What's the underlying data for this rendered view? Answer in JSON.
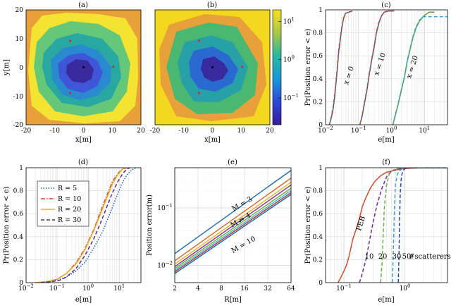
{
  "figure": {
    "panel_titles": [
      "(a)",
      "(b)",
      "(c)",
      "(d)",
      "(e)",
      "(f)"
    ]
  },
  "chart_data": [
    {
      "panel": "(a)",
      "type": "heatmap",
      "title": "(a)",
      "xlabel": "x[m]",
      "ylabel": "y[m]",
      "xlim": [
        -20,
        20
      ],
      "ylim": [
        -20,
        20
      ],
      "xticks": [
        "-20",
        "-10",
        "0",
        "10",
        "20"
      ],
      "yticks": [
        "20",
        "10",
        "0",
        "-10",
        "-20"
      ],
      "levels_colors": [
        "#e8a03a",
        "#f4e330",
        "#64c878",
        "#28a8a0",
        "#2a8ad0",
        "#3f56d8",
        "#3a2aa0"
      ],
      "anchors": [
        [
          -5,
          7
        ],
        [
          10,
          0
        ],
        [
          -5,
          -7
        ]
      ],
      "target": [
        0,
        0
      ]
    },
    {
      "panel": "(b)",
      "type": "heatmap",
      "title": "(b)",
      "xlabel": "x[m]",
      "xlim": [
        -20,
        20
      ],
      "ylim": [
        -20,
        20
      ],
      "xticks": [
        "-20",
        "-10",
        "0",
        "10",
        "20"
      ],
      "colorbar": {
        "ticks": [
          "10",
          "10",
          "10"
        ],
        "exponents": [
          "1",
          "0",
          "−1"
        ],
        "tick_values": [
          10,
          1,
          0.1
        ],
        "range": [
          0.02,
          20
        ]
      },
      "anchors": [
        [
          -5,
          7
        ],
        [
          10,
          0
        ],
        [
          -5,
          -7
        ]
      ],
      "target": [
        0,
        0
      ]
    },
    {
      "panel": "(c)",
      "type": "line",
      "title": "(c)",
      "xlabel": "e[m]",
      "ylabel": "Pr(Position error < e)",
      "xscale": "log",
      "xlim": [
        0.01,
        50
      ],
      "ylim": [
        0,
        1
      ],
      "xticks": [
        0.01,
        0.1,
        1,
        10
      ],
      "yticks": [
        "0",
        "0.2",
        "0.4",
        "0.6",
        "0.8",
        "1"
      ],
      "annotations": [
        "x = 0",
        "x = 10",
        "x = 20"
      ],
      "series": [
        {
          "x": [
            0.013,
            0.015,
            0.017,
            0.019,
            0.021,
            0.023,
            0.025,
            0.028,
            0.031,
            0.035,
            0.04,
            0.05,
            0.065
          ],
          "y": [
            0,
            0.06,
            0.14,
            0.25,
            0.38,
            0.5,
            0.63,
            0.74,
            0.84,
            0.92,
            0.97,
            0.98,
            0.99
          ],
          "color": "#1f5fb4",
          "dash": ""
        },
        {
          "x": [
            0.013,
            0.015,
            0.017,
            0.019,
            0.021,
            0.023,
            0.025,
            0.028,
            0.031,
            0.035,
            0.04,
            0.05,
            0.065
          ],
          "y": [
            0,
            0.07,
            0.16,
            0.27,
            0.4,
            0.52,
            0.65,
            0.76,
            0.85,
            0.93,
            0.97,
            0.98,
            0.99
          ],
          "color": "#d84a2a",
          "dash": "5,3"
        },
        {
          "x": [
            0.11,
            0.13,
            0.15,
            0.18,
            0.21,
            0.25,
            0.3,
            0.35,
            0.42,
            0.5,
            0.6,
            0.8,
            1.2
          ],
          "y": [
            0,
            0.08,
            0.18,
            0.3,
            0.43,
            0.56,
            0.68,
            0.8,
            0.89,
            0.95,
            0.98,
            0.99,
            0.99
          ],
          "color": "#1f5fb4",
          "dash": ""
        },
        {
          "x": [
            0.11,
            0.13,
            0.15,
            0.18,
            0.21,
            0.25,
            0.3,
            0.35,
            0.42,
            0.5,
            0.6,
            0.8,
            1.2
          ],
          "y": [
            0,
            0.09,
            0.19,
            0.31,
            0.44,
            0.57,
            0.69,
            0.81,
            0.9,
            0.95,
            0.98,
            0.99,
            0.99
          ],
          "color": "#d84a2a",
          "dash": "5,3"
        },
        {
          "x": [
            1.1,
            1.3,
            1.6,
            2,
            2.5,
            3,
            3.7,
            4.5,
            5.5,
            7,
            9,
            11,
            14,
            20
          ],
          "y": [
            0,
            0.08,
            0.18,
            0.3,
            0.42,
            0.55,
            0.66,
            0.76,
            0.84,
            0.9,
            0.94,
            0.96,
            0.98,
            0.98
          ],
          "color": "#5aa02c",
          "dash": ""
        },
        {
          "x": [
            1.1,
            1.3,
            1.6,
            2,
            2.5,
            3,
            3.7,
            4.5,
            5.5,
            7,
            9,
            10.5,
            12,
            50
          ],
          "y": [
            0,
            0.09,
            0.19,
            0.31,
            0.43,
            0.56,
            0.67,
            0.77,
            0.85,
            0.91,
            0.94,
            0.94,
            0.94,
            0.94
          ],
          "color": "#3aa8d8",
          "dash": "5,3"
        }
      ]
    },
    {
      "panel": "(d)",
      "type": "line",
      "title": "(d)",
      "xlabel": "e[m]",
      "ylabel": "Pr(Position error < e)",
      "xscale": "log",
      "xlim": [
        0.01,
        50
      ],
      "ylim": [
        0,
        1
      ],
      "xticks": [
        0.01,
        0.1,
        1,
        10
      ],
      "yticks": [
        "0",
        "0.2",
        "0.4",
        "0.6",
        "0.8",
        "1"
      ],
      "legend_position": "top-left",
      "series": [
        {
          "name": "R = 5",
          "color": "#1f5fb4",
          "dash": "1.5,2",
          "x": [
            0.02,
            0.05,
            0.1,
            0.2,
            0.4,
            0.8,
            1.5,
            3,
            5,
            8,
            12,
            18,
            25,
            35
          ],
          "y": [
            0,
            0.005,
            0.02,
            0.05,
            0.1,
            0.18,
            0.3,
            0.45,
            0.6,
            0.74,
            0.86,
            0.94,
            0.98,
            1
          ]
        },
        {
          "name": "R = 10",
          "color": "#d84a2a",
          "dash": "6,2,1.5,2",
          "x": [
            0.02,
            0.05,
            0.1,
            0.2,
            0.4,
            0.8,
            1.5,
            2.5,
            4,
            6,
            9,
            13,
            18
          ],
          "y": [
            0,
            0.01,
            0.03,
            0.08,
            0.17,
            0.3,
            0.46,
            0.62,
            0.76,
            0.88,
            0.95,
            0.99,
            1
          ]
        },
        {
          "name": "R = 20",
          "color": "#e8a820",
          "dash": "",
          "x": [
            0.02,
            0.05,
            0.1,
            0.2,
            0.4,
            0.8,
            1.5,
            2.5,
            4,
            6,
            9,
            13,
            16
          ],
          "y": [
            0,
            0.01,
            0.03,
            0.08,
            0.16,
            0.29,
            0.45,
            0.6,
            0.74,
            0.86,
            0.94,
            0.99,
            1
          ]
        },
        {
          "name": "R = 30",
          "color": "#5a2a8a",
          "dash": "5,3",
          "x": [
            0.03,
            0.07,
            0.12,
            0.2,
            0.4,
            0.8,
            1.5,
            2.5,
            4,
            6,
            9,
            13,
            18,
            22
          ],
          "y": [
            0,
            0.01,
            0.02,
            0.05,
            0.12,
            0.24,
            0.38,
            0.52,
            0.66,
            0.78,
            0.88,
            0.95,
            0.99,
            1
          ]
        }
      ]
    },
    {
      "panel": "(e)",
      "type": "line",
      "title": "(e)",
      "xlabel": "R[m]",
      "ylabel": "Position error(m)",
      "xscale": "log",
      "yscale": "log",
      "xlim": [
        2,
        64
      ],
      "ylim": [
        0.005,
        0.5
      ],
      "xticks": [
        "2",
        "4",
        "8",
        "16",
        "32",
        "64"
      ],
      "yticks": [
        "10",
        "10"
      ],
      "ytick_exponents": [
        "−1",
        "−2"
      ],
      "ytick_values": [
        0.1,
        0.01
      ],
      "annotations": [
        "M = 3",
        "M = 4",
        "M = 10"
      ],
      "series": [
        {
          "x": [
            2,
            64
          ],
          "y": [
            0.016,
            0.45
          ],
          "color": "#1f6fb4"
        },
        {
          "x": [
            2,
            64
          ],
          "y": [
            0.012,
            0.33
          ],
          "color": "#d86a2a"
        },
        {
          "x": [
            2,
            64
          ],
          "y": [
            0.0105,
            0.28
          ],
          "color": "#e8b830"
        },
        {
          "x": [
            2,
            64
          ],
          "y": [
            0.0095,
            0.25
          ],
          "color": "#8a3a9a"
        },
        {
          "x": [
            2,
            64
          ],
          "y": [
            0.0088,
            0.22
          ],
          "color": "#6ab040"
        },
        {
          "x": [
            2,
            64
          ],
          "y": [
            0.0082,
            0.2
          ],
          "color": "#4ab8d8"
        },
        {
          "x": [
            2,
            64
          ],
          "y": [
            0.0077,
            0.185
          ],
          "color": "#b83a3a"
        },
        {
          "x": [
            2,
            64
          ],
          "y": [
            0.0072,
            0.172
          ],
          "color": "#1f6fb4"
        }
      ]
    },
    {
      "panel": "(f)",
      "type": "line",
      "title": "(f)",
      "xlabel": "e[m]",
      "ylabel": "Pr(Position error < e)",
      "xscale": "log",
      "xlim": [
        0.05,
        5
      ],
      "ylim": [
        0,
        1
      ],
      "xticks": [
        0.1,
        1
      ],
      "yticks": [
        "0",
        "0.2",
        "0.4",
        "0.6",
        "0.8",
        "1"
      ],
      "annotations": [
        "PEB",
        "10",
        "20",
        "30",
        "50",
        "#scatterers"
      ],
      "series": [
        {
          "name": "PEB",
          "color": "#d84a2a",
          "dash": "",
          "x": [
            0.08,
            0.09,
            0.1,
            0.11,
            0.12,
            0.13,
            0.14,
            0.16,
            0.18,
            0.2,
            0.23,
            0.27,
            0.32,
            0.4,
            0.5,
            0.7,
            0.9,
            1.2,
            2,
            5
          ],
          "y": [
            0,
            0.05,
            0.1,
            0.15,
            0.22,
            0.3,
            0.38,
            0.47,
            0.56,
            0.66,
            0.74,
            0.82,
            0.88,
            0.93,
            0.96,
            0.98,
            0.99,
            0.995,
            1,
            1
          ]
        },
        {
          "name": "10",
          "color": "#6a2a9a",
          "dash": "5,3",
          "x": [
            0.18,
            0.2,
            0.23,
            0.26,
            0.3,
            0.35,
            0.42,
            0.5,
            0.6,
            0.8,
            1.2,
            5
          ],
          "y": [
            0,
            0.08,
            0.2,
            0.35,
            0.52,
            0.68,
            0.82,
            0.92,
            0.97,
            0.99,
            1,
            1
          ]
        },
        {
          "name": "20",
          "color": "#6ab040",
          "dash": "5,3",
          "x": [
            0.4,
            0.42,
            0.44,
            0.46,
            0.5,
            0.55,
            0.6,
            0.7,
            0.9,
            5
          ],
          "y": [
            0,
            0.15,
            0.4,
            0.65,
            0.85,
            0.94,
            0.97,
            0.99,
            1,
            1
          ]
        },
        {
          "name": "30",
          "color": "#3aa0d8",
          "dash": "5,3",
          "x": [
            0.62,
            0.64,
            0.66,
            0.68,
            0.7,
            0.75,
            0.8,
            0.9,
            1.1,
            5
          ],
          "y": [
            0,
            0.2,
            0.45,
            0.7,
            0.85,
            0.94,
            0.97,
            0.99,
            1,
            1
          ]
        },
        {
          "name": "50",
          "color": "#1f4fb4",
          "dash": "5,3",
          "x": [
            0.78,
            0.8,
            0.82,
            0.84,
            0.87,
            0.9,
            0.95,
            1.05,
            5
          ],
          "y": [
            0,
            0.25,
            0.55,
            0.78,
            0.9,
            0.95,
            0.98,
            1,
            1
          ]
        }
      ]
    }
  ]
}
